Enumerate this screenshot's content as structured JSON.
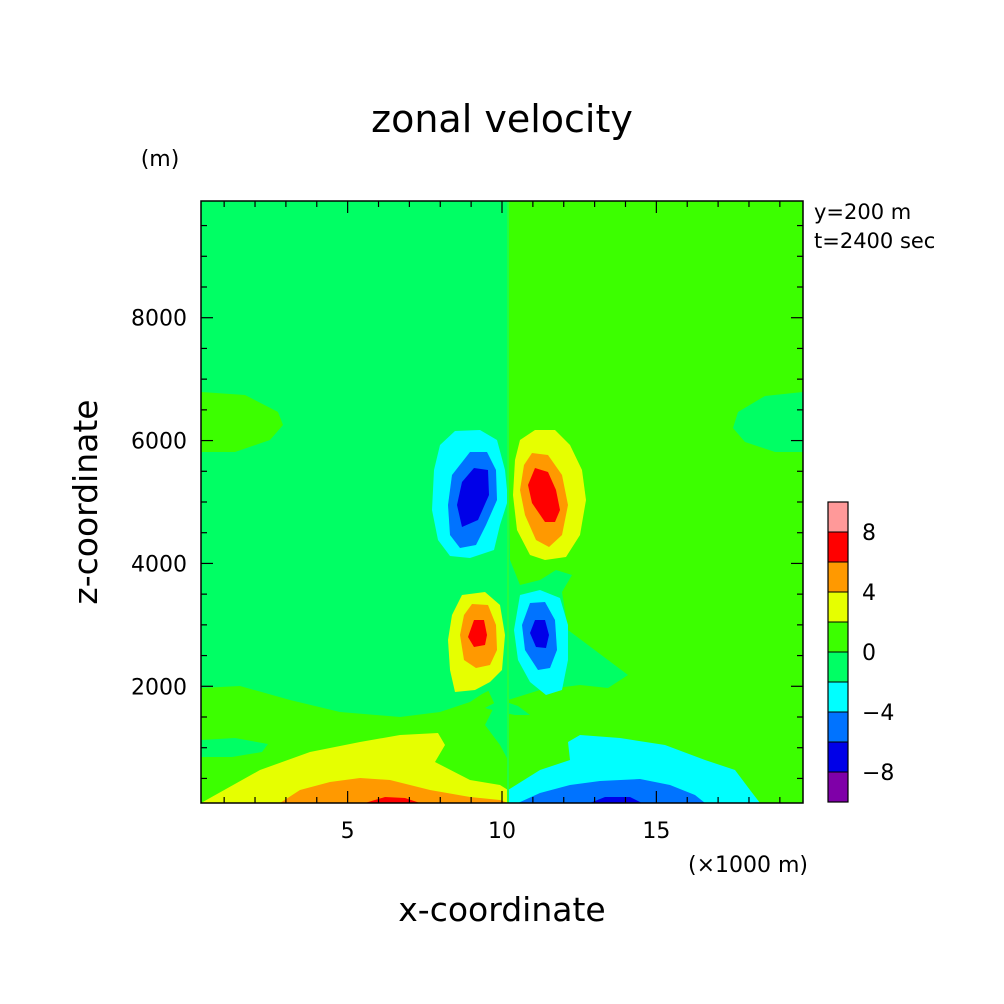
{
  "chart_data": {
    "type": "heatmap",
    "title": "zonal velocity",
    "xlabel": "x-coordinate",
    "ylabel": "z-coordinate",
    "x_unit": "(×1000 m)",
    "y_unit": "(m)",
    "annotations": [
      "y=200 m",
      "t=2400 sec"
    ],
    "xlim": [
      0.25,
      19.75
    ],
    "ylim": [
      100,
      9900
    ],
    "x_ticks": [
      {
        "value": 5,
        "label": "5"
      },
      {
        "value": 10,
        "label": "10"
      },
      {
        "value": 15,
        "label": "15"
      }
    ],
    "y_ticks": [
      {
        "value": 2000,
        "label": "2000"
      },
      {
        "value": 4000,
        "label": "4000"
      },
      {
        "value": 6000,
        "label": "6000"
      },
      {
        "value": 8000,
        "label": "8000"
      }
    ],
    "colorbar": {
      "placement": "right",
      "levels": [
        -10,
        -8,
        -6,
        -4,
        -2,
        0,
        2,
        4,
        6,
        8,
        10
      ],
      "colors": [
        "#7f00a8",
        "#0000e8",
        "#0073ff",
        "#00ffff",
        "#00ff64",
        "#3cff00",
        "#e6ff00",
        "#ff9900",
        "#ff0000",
        "#ff9999"
      ],
      "tick_labels": [
        {
          "value": 8,
          "label": "8"
        },
        {
          "value": 4,
          "label": "4"
        },
        {
          "value": 0,
          "label": "0"
        },
        {
          "value": -4,
          "label": "-4"
        },
        {
          "value": -8,
          "label": "-8"
        }
      ]
    },
    "regions": [
      {
        "name": "negative-upper-lobe",
        "x": 9.0,
        "z": 5100,
        "min_value": -8
      },
      {
        "name": "positive-upper-lobe",
        "x": 11.2,
        "z": 5100,
        "max_value": 8
      },
      {
        "name": "positive-lower-lobe",
        "x": 9.1,
        "z": 2850,
        "max_value": 8
      },
      {
        "name": "negative-lower-lobe",
        "x": 11.0,
        "z": 2850,
        "min_value": -8
      },
      {
        "name": "positive-surface-band",
        "x": 6.5,
        "z": 200,
        "max_value": 8
      },
      {
        "name": "negative-surface-band",
        "x": 14.0,
        "z": 200,
        "min_value": -8
      }
    ]
  }
}
